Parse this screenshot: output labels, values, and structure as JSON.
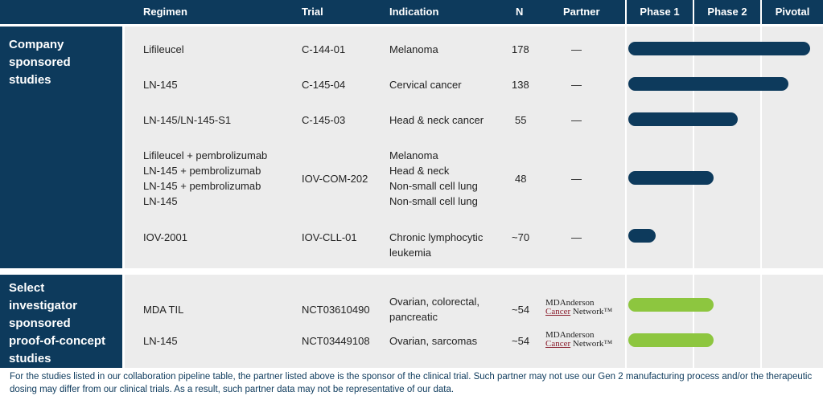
{
  "header": {
    "regimen": "Regimen",
    "trial": "Trial",
    "indication": "Indication",
    "n": "N",
    "partner": "Partner",
    "phase1": "Phase 1",
    "phase2": "Phase 2",
    "pivotal": "Pivotal"
  },
  "sections": {
    "company": "Company\nsponsored\nstudies",
    "investigator": "Select\ninvestigator\nsponsored\nproof-of-concept\nstudies"
  },
  "rows": [
    {
      "regimen": "Lifileucel",
      "trial": "C-144-01",
      "indication": "Melanoma",
      "n": "178",
      "partner": "—"
    },
    {
      "regimen": "LN-145",
      "trial": "C-145-04",
      "indication": "Cervical cancer",
      "n": "138",
      "partner": "—"
    },
    {
      "regimen": "LN-145/LN-145-S1",
      "trial": "C-145-03",
      "indication": "Head & neck cancer",
      "n": "55",
      "partner": "—"
    },
    {
      "regimen": "Lifileucel + pembrolizumab\nLN-145 + pembrolizumab\nLN-145 + pembrolizumab\nLN-145",
      "trial": "IOV-COM-202",
      "indication": "Melanoma\nHead & neck\nNon-small cell lung\nNon-small cell lung",
      "n": "48",
      "partner": "—"
    },
    {
      "regimen": "IOV-2001",
      "trial": "IOV-CLL-01",
      "indication": "Chronic lymphocytic\nleukemia",
      "n": "~70",
      "partner": "—"
    },
    {
      "regimen": "MDA TIL",
      "trial": "NCT03610490",
      "indication": "Ovarian, colorectal,\npancreatic",
      "n": "~54",
      "partner": "MDAnderson Cancer Network"
    },
    {
      "regimen": "LN-145",
      "trial": "NCT03449108",
      "indication": "Ovarian, sarcomas",
      "n": "~54",
      "partner": "MDAnderson Cancer Network"
    }
  ],
  "logo": {
    "line1": "MDAnderson",
    "line2a": "Cancer",
    "line2b": " Network",
    "tm": "™"
  },
  "progress": [
    {
      "phase_progress": 1.0,
      "color": "#0d3a5c"
    },
    {
      "phase_progress": 0.88,
      "color": "#0d3a5c"
    },
    {
      "phase_progress": 0.6,
      "color": "#0d3a5c"
    },
    {
      "phase_progress": 0.47,
      "color": "#0d3a5c"
    },
    {
      "phase_progress": 0.15,
      "color": "#0d3a5c"
    },
    {
      "phase_progress": 0.47,
      "color": "#8dc63f"
    },
    {
      "phase_progress": 0.47,
      "color": "#8dc63f"
    }
  ],
  "footnote": "For the studies listed in our collaboration pipeline table, the partner listed above is the sponsor of the clinical trial. Such partner may not use our Gen 2 manufacturing process and/or the therapeutic dosing may differ from our clinical trials. As a result, such partner data may not be representative of our data."
}
